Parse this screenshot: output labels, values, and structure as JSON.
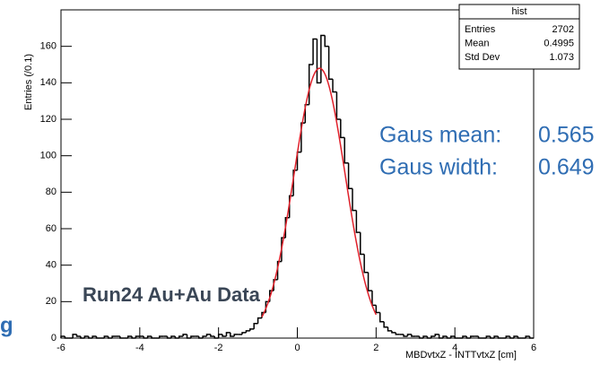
{
  "chart_data": {
    "type": "histogram",
    "xlabel": "MBDvtxZ - INTTvtxZ [cm]",
    "ylabel": "Entries (/0.1)",
    "xlim": [
      -6,
      6
    ],
    "ylim": [
      0,
      180
    ],
    "xticks": [
      -6,
      -4,
      -2,
      0,
      2,
      4,
      6
    ],
    "yticks": [
      0,
      20,
      40,
      60,
      80,
      100,
      120,
      140,
      160
    ],
    "color": "#000000",
    "bins": [
      -6,
      -5.9,
      -5.8,
      -5.7,
      -5.6,
      -5.5,
      -5.4,
      -5.3,
      -5.2,
      -5.1,
      -5,
      -4.9,
      -4.8,
      -4.7,
      -4.6,
      -4.5,
      -4.4,
      -4.3,
      -4.2,
      -4.1,
      -4,
      -3.9,
      -3.8,
      -3.7,
      -3.6,
      -3.5,
      -3.4,
      -3.3,
      -3.2,
      -3.1,
      -3,
      -2.9,
      -2.8,
      -2.7,
      -2.6,
      -2.5,
      -2.4,
      -2.3,
      -2.2,
      -2.1,
      -2,
      -1.9,
      -1.8,
      -1.7,
      -1.6,
      -1.5,
      -1.4,
      -1.3,
      -1.2,
      -1.1,
      -1,
      -0.9,
      -0.8,
      -0.7,
      -0.6,
      -0.5,
      -0.4,
      -0.3,
      -0.2,
      -0.1,
      0,
      0.1,
      0.2,
      0.3,
      0.4,
      0.5,
      0.6,
      0.7,
      0.8,
      0.9,
      1,
      1.1,
      1.2,
      1.3,
      1.4,
      1.5,
      1.6,
      1.7,
      1.8,
      1.9,
      2,
      2.1,
      2.2,
      2.3,
      2.4,
      2.5,
      2.6,
      2.7,
      2.8,
      2.9,
      3,
      3.1,
      3.2,
      3.3,
      3.4,
      3.5,
      3.6,
      3.7,
      3.8,
      3.9,
      4,
      4.1,
      4.2,
      4.3,
      4.4,
      4.5,
      4.6,
      4.7,
      4.8,
      4.9,
      5,
      5.1,
      5.2,
      5.3,
      5.4,
      5.5,
      5.6,
      5.7,
      5.8,
      5.9,
      6
    ],
    "values": [
      1,
      0,
      0,
      2,
      1,
      0,
      1,
      0,
      1,
      0,
      0,
      1,
      0,
      1,
      1,
      0,
      0,
      1,
      0,
      1,
      1,
      0,
      1,
      0,
      0,
      1,
      1,
      0,
      1,
      0,
      1,
      2,
      0,
      1,
      1,
      0,
      1,
      2,
      1,
      0,
      2,
      1,
      3,
      1,
      2,
      2,
      3,
      4,
      5,
      8,
      11,
      14,
      20,
      26,
      32,
      42,
      55,
      66,
      78,
      92,
      102,
      118,
      128,
      150,
      164,
      140,
      166,
      160,
      142,
      135,
      120,
      110,
      96,
      82,
      70,
      58,
      46,
      36,
      26,
      18,
      14,
      9,
      6,
      4,
      3,
      2,
      2,
      1,
      2,
      1,
      1,
      0,
      1,
      0,
      1,
      2,
      0,
      1,
      0,
      1,
      0,
      0,
      1,
      0,
      1,
      1,
      0,
      0,
      1,
      0,
      1,
      0,
      0,
      1,
      0,
      1,
      0,
      0,
      1,
      0
    ],
    "fit": {
      "color": "#e0202a",
      "constant": 148,
      "range": [
        -0.9,
        2.0
      ]
    },
    "stats": {
      "title": "hist",
      "rows": [
        {
          "label": "Entries",
          "value": 2702
        },
        {
          "label": "Mean",
          "value": 0.4995
        },
        {
          "label": "Std Dev",
          "value": 1.073
        }
      ]
    },
    "annotations": [
      {
        "label": "Gaus mean:",
        "value": 0.565
      },
      {
        "label": "Gaus width:",
        "value": 0.649
      }
    ],
    "annotation_color": "#2f6db3",
    "data_label": "Run24 Au+Au Data",
    "cut_text": "g"
  }
}
